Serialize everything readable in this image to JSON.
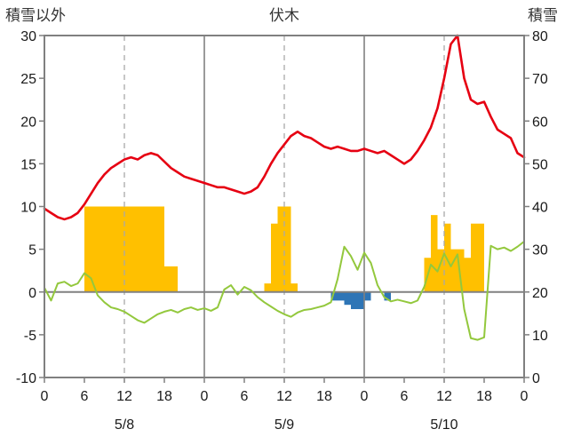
{
  "header": {
    "left_axis_title": "積雪以外",
    "station_title": "伏木",
    "right_axis_title": "積雪"
  },
  "chart_data": {
    "type": "line+bar",
    "title": "伏木",
    "left_axis": {
      "label": "積雪以外",
      "min": -10,
      "max": 30,
      "ticks": [
        30,
        25,
        20,
        15,
        10,
        5,
        0,
        -5,
        -10
      ]
    },
    "right_axis": {
      "label": "積雪",
      "min": 0,
      "max": 80,
      "ticks": [
        80,
        70,
        60,
        50,
        40,
        30,
        20,
        10,
        0
      ]
    },
    "x_axis": {
      "min": 0,
      "max": 72,
      "hour_ticks": [
        0,
        6,
        12,
        18,
        24,
        30,
        36,
        42,
        48,
        54,
        60,
        66,
        72
      ],
      "hour_labels": [
        "0",
        "6",
        "12",
        "18",
        "0",
        "6",
        "12",
        "18",
        "0",
        "6",
        "12",
        "18",
        "0"
      ],
      "date_labels": [
        {
          "label": "5/8",
          "hour": 12
        },
        {
          "label": "5/9",
          "hour": 36
        },
        {
          "label": "5/10",
          "hour": 60
        }
      ],
      "day_boundaries": [
        24,
        48
      ],
      "noon_lines": [
        12,
        36,
        60
      ]
    },
    "colors": {
      "red": "#e60012",
      "green": "#93c83d",
      "yellow": "#ffc000",
      "blue": "#2e75b6",
      "grid": "#808080",
      "grid_dash": "#a9a9a9",
      "border": "#808080",
      "text": "#1a1a1a"
    },
    "grid": true,
    "legend": "none",
    "series": [
      {
        "name": "red-line",
        "type": "line",
        "axis": "right",
        "color": "#e60012",
        "width": 2.6,
        "x_start": 0,
        "x_step": 1,
        "values": [
          39.5,
          38.5,
          37.5,
          37,
          37.5,
          38.5,
          40.5,
          43,
          45.5,
          47.5,
          49,
          50,
          51,
          51.5,
          51,
          52,
          52.5,
          52,
          50.5,
          49,
          48,
          47,
          46.5,
          46,
          45.5,
          45,
          44.5,
          44.5,
          44,
          43.5,
          43,
          43.5,
          44.5,
          47,
          50,
          52.5,
          54.5,
          56.5,
          57.5,
          56.5,
          56,
          55,
          54,
          53.5,
          54,
          53.5,
          53,
          53,
          53.5,
          53,
          52.5,
          53,
          52,
          51,
          50,
          51,
          53,
          55.5,
          58.5,
          63,
          70,
          78,
          80,
          70,
          65,
          64,
          64.5,
          61,
          58,
          57,
          56,
          52.5,
          51.5
        ]
      },
      {
        "name": "green-line",
        "type": "line",
        "axis": "left",
        "color": "#93c83d",
        "width": 2,
        "x_start": 0,
        "x_step": 1,
        "values": [
          0.5,
          -1.0,
          1.0,
          1.2,
          0.7,
          1.0,
          2.2,
          1.6,
          -0.4,
          -1.2,
          -1.8,
          -2.0,
          -2.3,
          -2.8,
          -3.3,
          -3.6,
          -3.1,
          -2.6,
          -2.3,
          -2.1,
          -2.4,
          -2.0,
          -1.8,
          -2.1,
          -1.9,
          -2.2,
          -1.8,
          0.3,
          0.8,
          -0.3,
          0.6,
          0.2,
          -0.6,
          -1.2,
          -1.7,
          -2.2,
          -2.6,
          -2.9,
          -2.4,
          -2.1,
          -2.0,
          -1.8,
          -1.6,
          -1.2,
          1.5,
          5.3,
          4.2,
          2.6,
          4.6,
          3.4,
          0.8,
          -0.6,
          -1.1,
          -0.9,
          -1.1,
          -1.3,
          -1.0,
          0.6,
          3.2,
          2.4,
          4.5,
          3.0,
          4.4,
          -2.0,
          -5.4,
          -5.6,
          -5.3,
          5.4,
          5.0,
          5.2,
          4.8,
          5.3,
          5.9
        ]
      },
      {
        "name": "yellow-bars",
        "type": "bar",
        "axis": "left",
        "color": "#ffc000",
        "hours": [
          6,
          7,
          8,
          9,
          10,
          11,
          12,
          13,
          14,
          15,
          16,
          17,
          18,
          19,
          33,
          34,
          35,
          36,
          37,
          57,
          58,
          59,
          60,
          61,
          62,
          63,
          64,
          65
        ],
        "values": [
          10,
          10,
          10,
          10,
          10,
          10,
          10,
          10,
          10,
          10,
          10,
          10,
          3,
          3,
          1,
          8,
          10,
          10,
          1,
          4,
          9,
          5,
          8,
          5,
          5,
          4,
          8,
          8
        ]
      },
      {
        "name": "blue-bars",
        "type": "bar",
        "axis": "left",
        "color": "#2e75b6",
        "hours": [
          43,
          44,
          45,
          46,
          47,
          48,
          51
        ],
        "values": [
          -1,
          -1,
          -1.5,
          -2,
          -2,
          -1,
          -1
        ]
      }
    ]
  }
}
